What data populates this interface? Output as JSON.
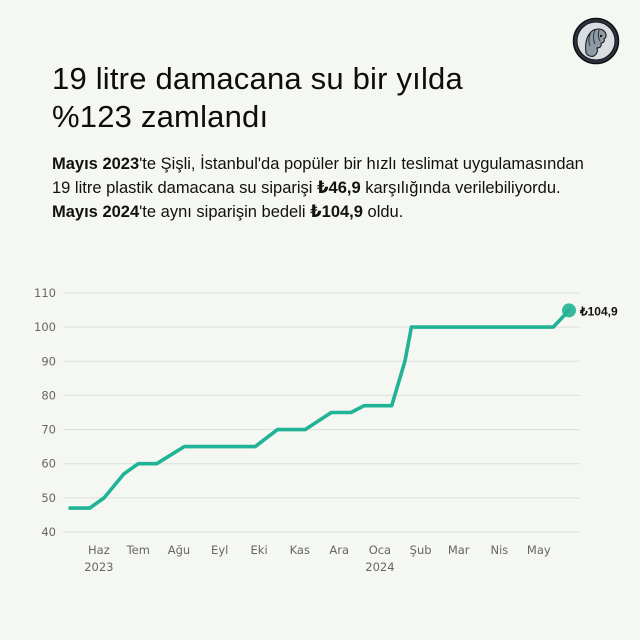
{
  "header": {
    "title_line1": "19 litre damacana su bir yılda",
    "title_line2": "%123 zamlandı"
  },
  "description": {
    "p1_bold": "Mayıs 2023",
    "p1_text": "'te Şişli, İstanbul'da popüler bir hızlı teslimat uygulamasından 19 litre plastik damacana su siparişi ",
    "p1_price": "₺46,9",
    "p1_text2": " karşılığında verilebiliyordu. ",
    "p2_bold": "Mayıs 2024",
    "p2_text": "'te aynı siparişin bedeli ",
    "p2_price": "₺104,9",
    "p2_text2": " oldu."
  },
  "logo": {
    "icon": "profile-coin-logo-icon"
  },
  "colors": {
    "line": "#20b396",
    "grid": "#dcdfdc",
    "tick": "#666666",
    "background": "#f5f7f2"
  },
  "chart_data": {
    "type": "line",
    "x_unit": "date",
    "series": [
      {
        "points": [
          [
            "2023-05-10",
            47
          ],
          [
            "2023-05-25",
            47
          ],
          [
            "2023-06-05",
            50
          ],
          [
            "2023-06-20",
            57
          ],
          [
            "2023-07-01",
            60
          ],
          [
            "2023-07-15",
            60
          ],
          [
            "2023-08-05",
            65
          ],
          [
            "2023-08-20",
            65
          ],
          [
            "2023-09-10",
            65
          ],
          [
            "2023-09-28",
            65
          ],
          [
            "2023-10-15",
            70
          ],
          [
            "2023-11-05",
            70
          ],
          [
            "2023-11-25",
            75
          ],
          [
            "2023-12-10",
            75
          ],
          [
            "2023-12-20",
            77
          ],
          [
            "2024-01-10",
            77
          ],
          [
            "2024-01-20",
            90
          ],
          [
            "2024-01-25",
            100
          ],
          [
            "2024-02-15",
            100
          ],
          [
            "2024-03-15",
            100
          ],
          [
            "2024-04-15",
            100
          ],
          [
            "2024-05-12",
            100
          ],
          [
            "2024-05-24",
            104.9
          ]
        ]
      }
    ],
    "end_label": "₺104,9",
    "ylim": [
      40,
      110
    ],
    "yticks": [
      40,
      50,
      60,
      70,
      80,
      90,
      100,
      110
    ],
    "xticks": [
      {
        "date": "2023-06-01",
        "label": "Haz",
        "sub": "2023"
      },
      {
        "date": "2023-07-01",
        "label": "Tem",
        "sub": ""
      },
      {
        "date": "2023-08-01",
        "label": "Ağu",
        "sub": ""
      },
      {
        "date": "2023-09-01",
        "label": "Eyl",
        "sub": ""
      },
      {
        "date": "2023-10-01",
        "label": "Eki",
        "sub": ""
      },
      {
        "date": "2023-11-01",
        "label": "Kas",
        "sub": ""
      },
      {
        "date": "2023-12-01",
        "label": "Ara",
        "sub": ""
      },
      {
        "date": "2024-01-01",
        "label": "Oca",
        "sub": "2024"
      },
      {
        "date": "2024-02-01",
        "label": "Şub",
        "sub": ""
      },
      {
        "date": "2024-03-01",
        "label": "Mar",
        "sub": ""
      },
      {
        "date": "2024-04-01",
        "label": "Nis",
        "sub": ""
      },
      {
        "date": "2024-05-01",
        "label": "May",
        "sub": ""
      }
    ],
    "grid": true,
    "title": "",
    "xlabel": "",
    "ylabel": ""
  }
}
